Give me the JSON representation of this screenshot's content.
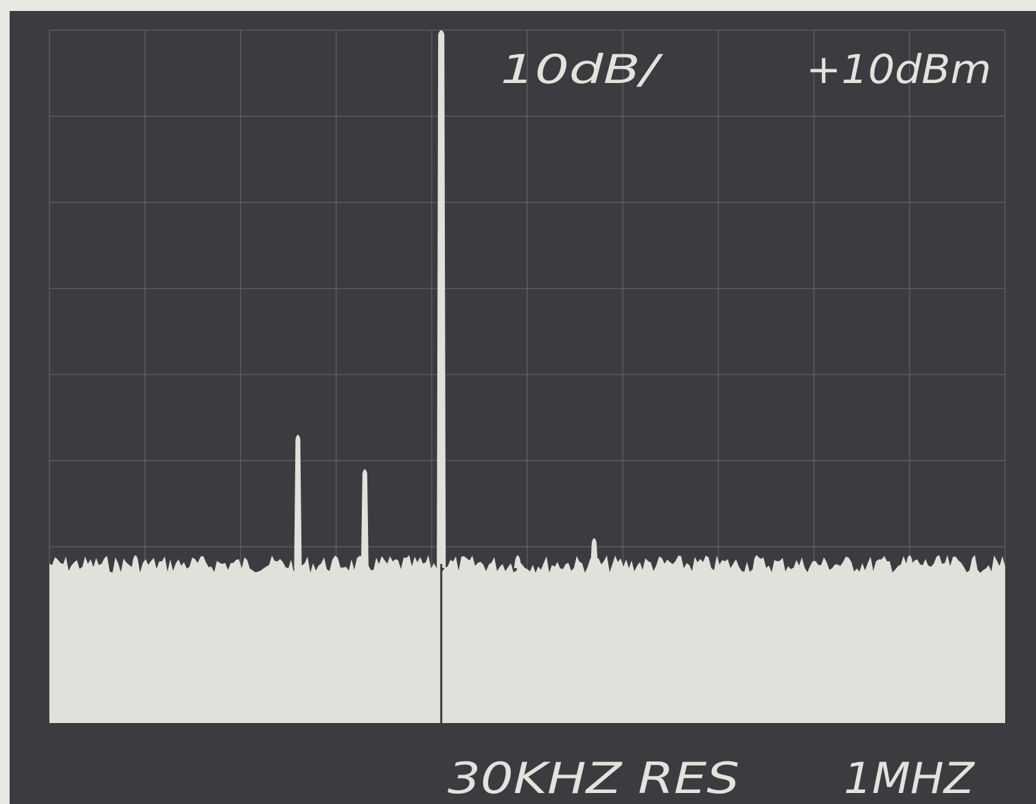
{
  "screen": {
    "background_color": "#3d3b3f",
    "trace_color": "#e2e0da",
    "graticule_color": "#6b696d"
  },
  "readouts": {
    "scale": "10dB/",
    "reference_level": "+10dBm",
    "resolution_bandwidth": "30KHZ RES",
    "span_per_division": "1MHZ"
  },
  "chart_data": {
    "type": "line",
    "title": "",
    "xlabel": "",
    "ylabel": "",
    "grid": true,
    "graticule": {
      "x_divisions": 10,
      "y_divisions": 8
    },
    "units": {
      "x": "divisions",
      "y": "dB relative to reference level"
    },
    "ylim": [
      -80,
      0
    ],
    "xlim": [
      0,
      10
    ],
    "noise_floor": -62,
    "series": [
      {
        "peaks": [
          {
            "x": 4.1,
            "y": 0
          },
          {
            "x": 2.6,
            "y": -47
          },
          {
            "x": 3.3,
            "y": -51
          },
          {
            "x": 4.9,
            "y": -61
          },
          {
            "x": 5.7,
            "y": -59
          },
          {
            "x": 0.9,
            "y": -61
          },
          {
            "x": 7.4,
            "y": -61
          },
          {
            "x": 9.0,
            "y": -61
          }
        ]
      }
    ]
  }
}
